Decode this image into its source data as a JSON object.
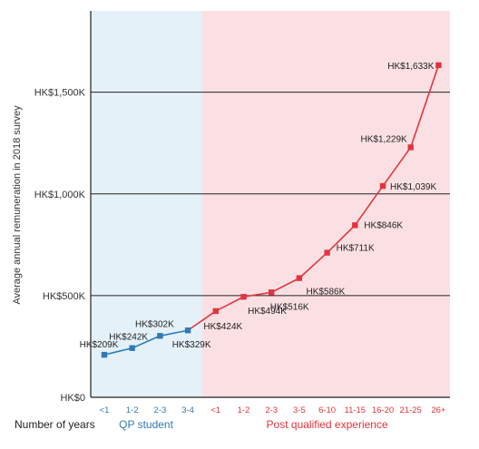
{
  "chart_data": {
    "type": "line",
    "ylabel": "Average annual remuneration in 2018 survey",
    "xlabel": "Number of years",
    "ylim": [
      0,
      1900
    ],
    "yticks": [
      {
        "value": 0,
        "label": "HK$0"
      },
      {
        "value": 500,
        "label": "HK$500K"
      },
      {
        "value": 1000,
        "label": "HK$1,000K"
      },
      {
        "value": 1500,
        "label": "HK$1,500K"
      }
    ],
    "groups": [
      {
        "name": "QP student",
        "color": "#2f7bb5",
        "background": "#e4f1f9",
        "categories": [
          "<1",
          "1-2",
          "2-3",
          "3-4"
        ]
      },
      {
        "name": "Post qualified experience",
        "color": "#e2343e",
        "background": "#fbe0e3",
        "categories": [
          "<1",
          "1-2",
          "2-3",
          "3-5",
          "6-10",
          "11-15",
          "16-20",
          "21-25",
          "26+"
        ]
      }
    ],
    "series": [
      {
        "name": "QP student",
        "color": "#2f7bb5",
        "values": [
          209,
          242,
          302,
          329
        ],
        "labels": [
          "HK$209K",
          "HK$242K",
          "HK$302K",
          "HK$329K"
        ]
      },
      {
        "name": "Post qualified experience",
        "color": "#e2343e",
        "values": [
          424,
          494,
          516,
          586,
          711,
          846,
          1039,
          1229,
          1633
        ],
        "labels": [
          "HK$424K",
          "HK$494K",
          "HK$516K",
          "HK$586K",
          "HK$711K",
          "HK$846K",
          "HK$1,039K",
          "HK$1,229K",
          "HK$1,633K"
        ]
      }
    ]
  }
}
